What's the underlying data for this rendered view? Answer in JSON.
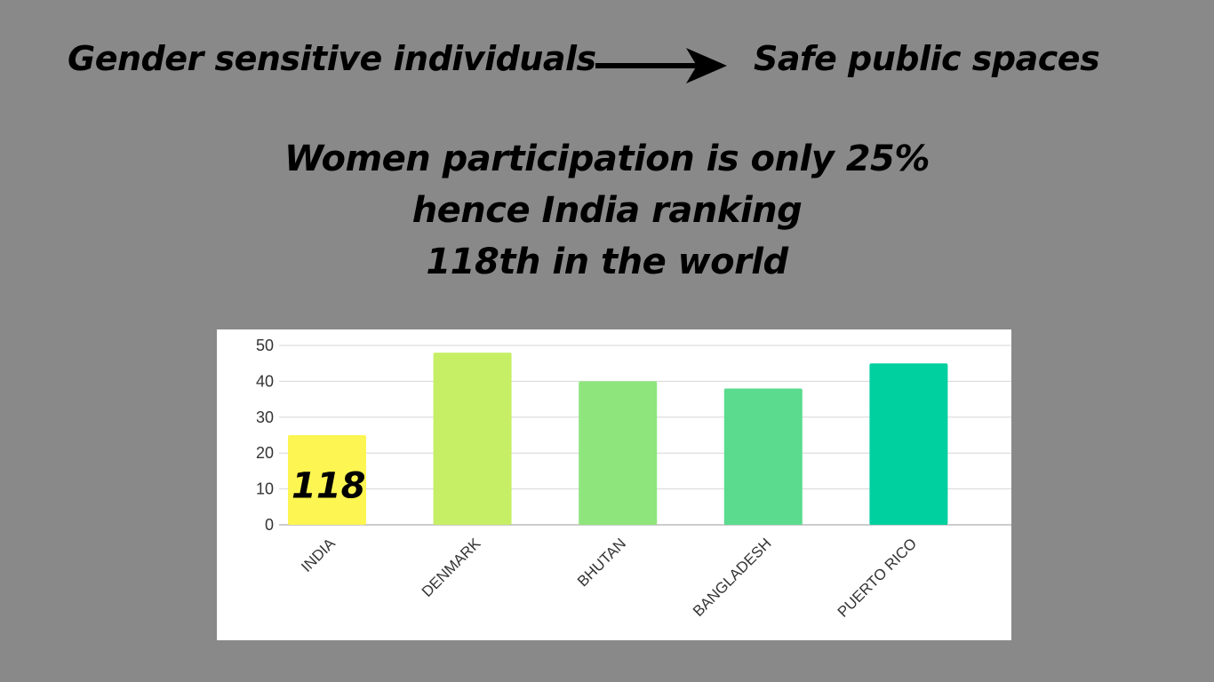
{
  "headline": {
    "left_text": "Gender sensitive individuals",
    "right_text": "Safe public spaces",
    "arrow_icon": "right-arrow-icon"
  },
  "statement": {
    "lines": [
      "Women participation is only 25%",
      "hence India ranking",
      "118th in the world"
    ]
  },
  "chart_data": {
    "type": "bar",
    "title": "",
    "xlabel": "",
    "ylabel": "",
    "categories": [
      "INDIA",
      "DENMARK",
      "BHUTAN",
      "BANGLADESH",
      "PUERTO RICO"
    ],
    "values": [
      25,
      48,
      40,
      38,
      45
    ],
    "colors": [
      "#fdf551",
      "#c6ef66",
      "#8ee57c",
      "#5adb8e",
      "#00cf9f"
    ],
    "ylim": [
      0,
      50
    ],
    "yticks": [
      0,
      10,
      20,
      30,
      40,
      50
    ],
    "grid": true,
    "legend": "none",
    "annotations": [
      {
        "category": "INDIA",
        "text": "118"
      }
    ]
  }
}
